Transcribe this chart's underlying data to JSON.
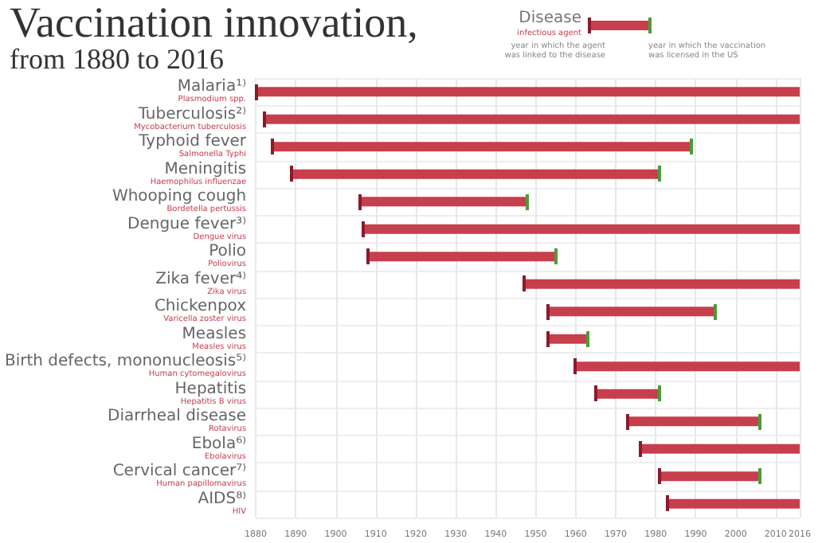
{
  "chart_data": {
    "type": "bar",
    "orientation": "horizontal",
    "title": "Vaccination innovation,",
    "subtitle": "from 1880 to 2016",
    "categories": [
      "Malaria¹⁾\nPlasmodium spp.",
      "Tuberculosis²⁾\nMycobacterium tuberculosis",
      "Typhoid fever\nSalmonella Typhi",
      "Meningitis\nHaemophilus influenzae",
      "Whooping cough\nBordetella pertussis",
      "Dengue fever³⁾\nDengue virus",
      "Polio\nPoliovirus",
      "Zika fever⁴⁾\nZika virus",
      "Chickenpox\nVaricella zoster virus",
      "Measles\nMeasles virus",
      "Birth defects, mononucleosis⁵⁾\nHuman cytomegalovirus",
      "Hepatitis\nHepatitis B virus",
      "Diarrheal disease\nRotavirus",
      "Ebola⁶⁾\nEbolavirus",
      "Cervical cancer⁷⁾\nHuman papillomavirus",
      "AIDS⁸⁾\nHIV"
    ],
    "base": [
      1880,
      1882,
      1884,
      1889,
      1906,
      1907,
      1908,
      1947,
      1953,
      1953,
      1960,
      1965,
      1973,
      1976,
      1981,
      1983
    ],
    "values": [
      136,
      134,
      105,
      92,
      42,
      109,
      47,
      69,
      42,
      10,
      56,
      16,
      33,
      40,
      25,
      33
    ],
    "color": "#c73e4d",
    "xlim": [
      1880,
      2016
    ],
    "xticks": [
      1880,
      1890,
      1900,
      1910,
      1920,
      1930,
      1940,
      1950,
      1960,
      1970,
      1980,
      1990,
      2000,
      2010,
      2016
    ],
    "grid": true,
    "annotations": [
      "Disease",
      "infectious agent",
      "year in which the agent was linked to the disease",
      "year in which the vaccination was licensed in the US"
    ]
  }
}
